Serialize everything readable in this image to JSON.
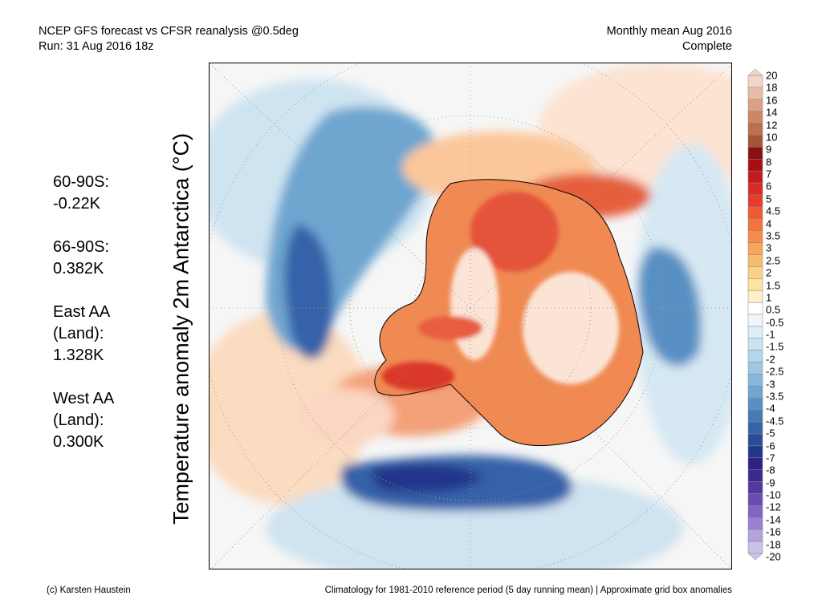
{
  "header": {
    "line1": "NCEP GFS forecast vs CFSR reanalysis @0.5deg",
    "line2": "Run: 31 Aug 2016 18z",
    "right_line1": "Monthly mean Aug 2016",
    "right_line2": "Complete"
  },
  "y_label": "Temperature anomaly 2m Antarctica (°C)",
  "stats": [
    {
      "lines": [
        "60-90S:",
        "-0.22K"
      ]
    },
    {
      "lines": [
        "66-90S:",
        "0.382K"
      ]
    },
    {
      "lines": [
        "East AA",
        "(Land):",
        "1.328K"
      ]
    },
    {
      "lines": [
        "West AA",
        "(Land):",
        "0.300K"
      ]
    }
  ],
  "colorbar": {
    "labels": [
      "20",
      "18",
      "16",
      "14",
      "12",
      "10",
      "9",
      "8",
      "7",
      "6",
      "5",
      "4.5",
      "4",
      "3.5",
      "3",
      "2.5",
      "2",
      "1.5",
      "1",
      "0.5",
      "-0.5",
      "-1",
      "-1.5",
      "-2",
      "-2.5",
      "-3",
      "-3.5",
      "-4",
      "-4.5",
      "-5",
      "-6",
      "-7",
      "-8",
      "-9",
      "-10",
      "-12",
      "-14",
      "-16",
      "-18",
      "-20"
    ],
    "colors": [
      "#f2d6c8",
      "#e8bca6",
      "#dca184",
      "#cd8766",
      "#bf6e4e",
      "#a85236",
      "#8a0f12",
      "#a80f15",
      "#c41a1e",
      "#d92a27",
      "#e63b2d",
      "#ef5a35",
      "#f3733f",
      "#f58c4a",
      "#f8a55a",
      "#f9bc6e",
      "#fbd185",
      "#fce3a2",
      "#fdf0c6",
      "#ffffff",
      "#eef6fb",
      "#ddeef6",
      "#c9e3f0",
      "#b4d6ea",
      "#9dc8e3",
      "#85b8da",
      "#6ea6d0",
      "#5890c4",
      "#4679b6",
      "#3662a8",
      "#2a4c98",
      "#22368a",
      "#2a2384",
      "#3b2a8e",
      "#5438a0",
      "#6a4db2",
      "#8066c2",
      "#9982d0",
      "#b3a2dd",
      "#ccc1e8"
    ]
  },
  "footer": {
    "left": "(c) Karsten Haustein",
    "right": "Climatology for 1981-2010 reference period (5 day running mean) | Approximate grid box anomalies"
  }
}
